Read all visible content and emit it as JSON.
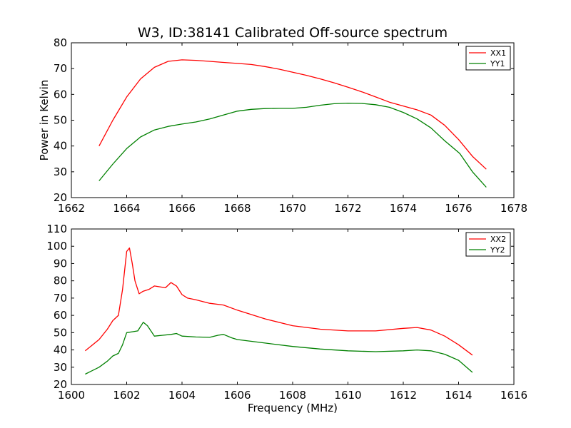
{
  "title": "W3, ID:38141 Calibrated Off-source spectrum",
  "chart_data": [
    {
      "type": "line",
      "title": "W3, ID:38141 Calibrated Off-source spectrum",
      "xlabel": "",
      "ylabel": "Power in Kelvin",
      "xlim": [
        1662,
        1678
      ],
      "ylim": [
        20,
        80
      ],
      "xticks": [
        1662,
        1664,
        1666,
        1668,
        1670,
        1672,
        1674,
        1676,
        1678
      ],
      "yticks": [
        20,
        30,
        40,
        50,
        60,
        70,
        80
      ],
      "grid": false,
      "legend_position": "top-right",
      "series": [
        {
          "name": "XX1",
          "color": "#ff0000",
          "x": [
            1663.0,
            1663.5,
            1664.0,
            1664.5,
            1665.0,
            1665.5,
            1666.0,
            1666.5,
            1667.0,
            1667.5,
            1668.0,
            1668.5,
            1669.0,
            1669.5,
            1670.0,
            1670.5,
            1671.0,
            1671.5,
            1672.0,
            1672.5,
            1673.0,
            1673.5,
            1674.0,
            1674.5,
            1675.0,
            1675.5,
            1676.0,
            1676.5,
            1677.0
          ],
          "y": [
            40,
            50,
            59,
            66,
            70.5,
            72.8,
            73.4,
            73.2,
            72.8,
            72.4,
            72.0,
            71.6,
            70.8,
            69.8,
            68.6,
            67.4,
            66.0,
            64.5,
            62.8,
            61.0,
            59.0,
            57.0,
            55.5,
            54.0,
            52.0,
            48.0,
            42.5,
            36.0,
            31.0
          ]
        },
        {
          "name": "YY1",
          "color": "#008000",
          "x": [
            1663.0,
            1663.5,
            1664.0,
            1664.5,
            1665.0,
            1665.5,
            1666.0,
            1666.5,
            1667.0,
            1667.5,
            1668.0,
            1668.5,
            1669.0,
            1669.5,
            1670.0,
            1670.5,
            1671.0,
            1671.5,
            1672.0,
            1672.5,
            1673.0,
            1673.5,
            1674.0,
            1674.5,
            1675.0,
            1675.5,
            1676.0,
            1676.05,
            1676.5,
            1677.0
          ],
          "y": [
            26.5,
            33,
            39,
            43.5,
            46.2,
            47.6,
            48.5,
            49.3,
            50.5,
            52.0,
            53.5,
            54.2,
            54.5,
            54.6,
            54.6,
            55.0,
            55.8,
            56.4,
            56.6,
            56.5,
            56.0,
            55.0,
            53.0,
            50.5,
            47.0,
            42.0,
            37.5,
            37.0,
            30.0,
            24.0
          ]
        }
      ]
    },
    {
      "type": "line",
      "title": "",
      "xlabel": "Frequency (MHz)",
      "ylabel": "",
      "xlim": [
        1600,
        1616
      ],
      "ylim": [
        20,
        110
      ],
      "xticks": [
        1600,
        1602,
        1604,
        1606,
        1608,
        1610,
        1612,
        1614,
        1616
      ],
      "yticks": [
        20,
        30,
        40,
        50,
        60,
        70,
        80,
        90,
        100,
        110
      ],
      "grid": false,
      "legend_position": "top-right",
      "series": [
        {
          "name": "XX2",
          "color": "#ff0000",
          "x": [
            1600.5,
            1601.0,
            1601.3,
            1601.5,
            1601.7,
            1601.85,
            1602.0,
            1602.1,
            1602.2,
            1602.3,
            1602.45,
            1602.6,
            1602.8,
            1603.0,
            1603.2,
            1603.4,
            1603.6,
            1603.8,
            1604.0,
            1604.2,
            1604.5,
            1605.0,
            1605.5,
            1606.0,
            1607.0,
            1608.0,
            1609.0,
            1610.0,
            1611.0,
            1612.0,
            1612.5,
            1613.0,
            1613.5,
            1614.0,
            1614.5
          ],
          "y": [
            39.5,
            46.0,
            52.0,
            57.0,
            60.0,
            75.0,
            97.0,
            99.0,
            90.0,
            80.0,
            72.5,
            74.0,
            75.0,
            77.0,
            76.5,
            76.0,
            79.0,
            77.0,
            72.0,
            70.0,
            69.0,
            67.0,
            66.0,
            63.0,
            58.0,
            54.0,
            52.0,
            51.0,
            51.0,
            52.5,
            53.0,
            51.5,
            48.0,
            43.0,
            37.0
          ]
        },
        {
          "name": "YY2",
          "color": "#008000",
          "x": [
            1600.5,
            1601.0,
            1601.3,
            1601.5,
            1601.7,
            1601.85,
            1602.0,
            1602.2,
            1602.4,
            1602.6,
            1602.75,
            1603.0,
            1603.3,
            1603.6,
            1603.8,
            1604.0,
            1604.5,
            1605.0,
            1605.3,
            1605.5,
            1605.8,
            1606.0,
            1607.0,
            1608.0,
            1609.0,
            1610.0,
            1611.0,
            1612.0,
            1612.5,
            1613.0,
            1613.5,
            1614.0,
            1614.5
          ],
          "y": [
            26.0,
            30.0,
            33.5,
            36.5,
            38.0,
            43.0,
            50.0,
            50.5,
            51.0,
            56.0,
            54.0,
            48.0,
            48.5,
            49.0,
            49.5,
            48.0,
            47.5,
            47.3,
            48.5,
            49.0,
            47.0,
            46.0,
            44.0,
            42.0,
            40.5,
            39.5,
            39.0,
            39.5,
            40.0,
            39.5,
            37.5,
            34.0,
            27.0
          ]
        }
      ]
    }
  ]
}
